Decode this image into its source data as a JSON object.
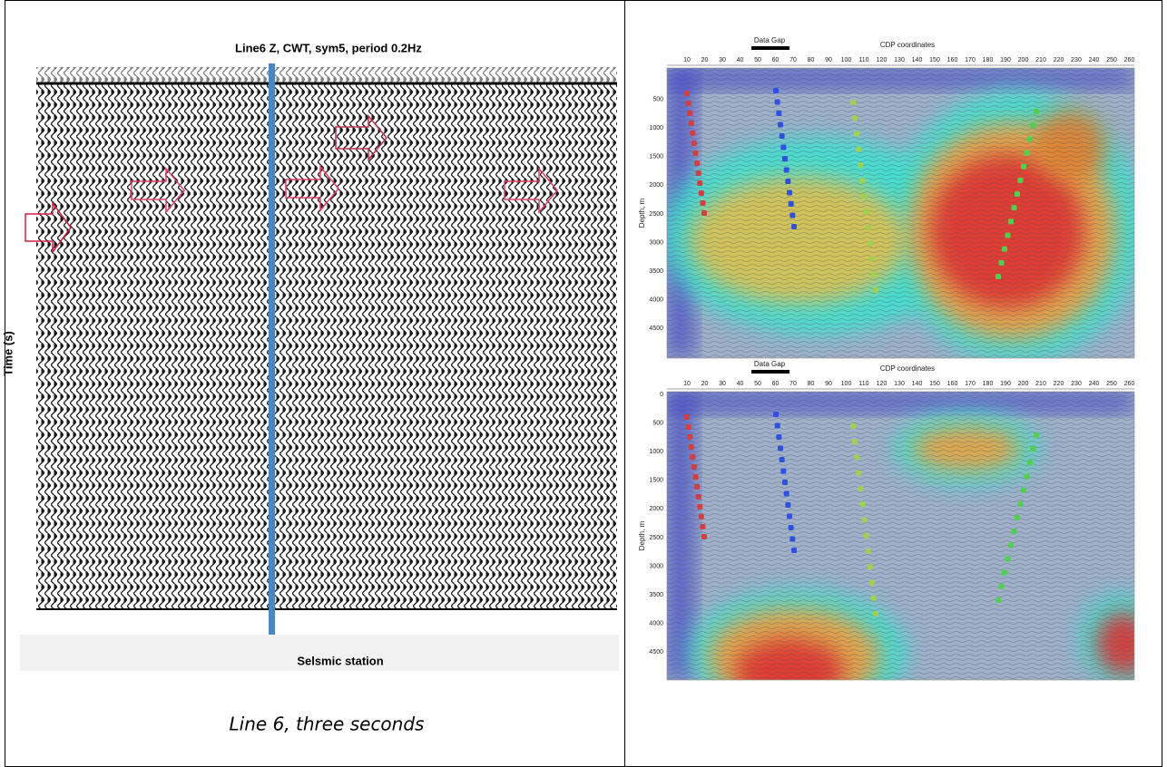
{
  "left_figure": {
    "title": "Line6 Z, CWT, sym5, period 0.2Hz",
    "y_axis_label": "Time (s)",
    "x_axis_label": "Selsmic station",
    "caption": "Line 6, three seconds"
  },
  "right_figure": {
    "panels": [
      {
        "annotation": "Data Gap",
        "x_axis_label": "CDP coordinates",
        "y_axis_label": "Depth, m",
        "x_ticks": [
          "10",
          "20",
          "30",
          "40",
          "50",
          "60",
          "70",
          "80",
          "90",
          "100",
          "110",
          "120",
          "130",
          "140",
          "150",
          "160",
          "170",
          "180",
          "190",
          "200",
          "210",
          "220",
          "230",
          "240",
          "250",
          "260"
        ],
        "y_ticks": [
          "500",
          "1000",
          "1500",
          "2000",
          "2500",
          "3000",
          "3500",
          "4000",
          "4500"
        ]
      },
      {
        "annotation": "Data Gap",
        "x_axis_label": "CDP coordinates",
        "y_axis_label": "Depth, m",
        "x_ticks": [
          "10",
          "20",
          "30",
          "40",
          "50",
          "60",
          "70",
          "80",
          "90",
          "100",
          "110",
          "120",
          "130",
          "140",
          "150",
          "160",
          "170",
          "180",
          "190",
          "200",
          "210",
          "220",
          "230",
          "240",
          "250",
          "260"
        ],
        "y_ticks": [
          "0",
          "500",
          "1000",
          "1500",
          "2000",
          "2500",
          "3000",
          "3500",
          "4000",
          "4500"
        ]
      }
    ]
  }
}
